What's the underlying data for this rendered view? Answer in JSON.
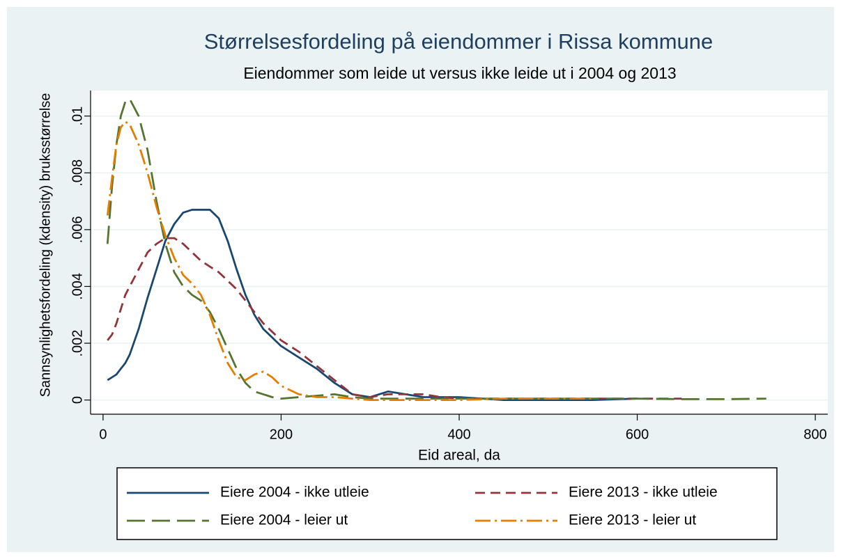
{
  "chart_data": {
    "type": "line",
    "title": "Størrelsesfordeling på eiendommer i Rissa kommune",
    "subtitle": "Eiendommer som leide ut versus ikke leide ut i 2004 og 2013",
    "x_label": "Eid areal, da",
    "y_label": "Sannsynlighetsfordeling (kdensity) bruksstørrelse",
    "x": [
      5,
      10,
      15,
      20,
      25,
      30,
      40,
      50,
      60,
      70,
      80,
      90,
      100,
      110,
      120,
      130,
      140,
      150,
      160,
      170,
      180,
      190,
      200,
      220,
      240,
      260,
      280,
      300,
      320,
      340,
      360,
      380,
      400,
      450,
      500,
      550,
      600,
      650,
      700,
      745
    ],
    "series": [
      {
        "name": "Eiere 2004 - ikke utleie",
        "color": "#1a476f",
        "dash": "solid",
        "values": [
          0.0007,
          0.0008,
          0.0009,
          0.0011,
          0.0013,
          0.0016,
          0.0025,
          0.0036,
          0.0046,
          0.0056,
          0.0062,
          0.0066,
          0.0067,
          0.0067,
          0.0067,
          0.0064,
          0.0056,
          0.0046,
          0.0037,
          0.003,
          0.0025,
          0.0022,
          0.0019,
          0.0015,
          0.0011,
          0.0006,
          0.0002,
          0.0001,
          0.0003,
          0.0002,
          0.0001,
          0.0001,
          0.0001,
          0,
          0,
          0,
          5e-05,
          null,
          null,
          null
        ]
      },
      {
        "name": "Eiere 2013 - ikke utleie",
        "color": "#90353b",
        "dash": "dash",
        "values": [
          0.0021,
          0.0023,
          0.0027,
          0.0032,
          0.0037,
          0.004,
          0.0046,
          0.0052,
          0.0055,
          0.0057,
          0.0057,
          0.0055,
          0.0052,
          0.0049,
          0.0047,
          0.0045,
          0.0042,
          0.0039,
          0.0035,
          0.0031,
          0.0027,
          0.0024,
          0.0021,
          0.0017,
          0.0012,
          0.0007,
          0.0002,
          0.0001,
          0.0002,
          0.0002,
          0.0002,
          0.0001,
          5e-05,
          5e-05,
          5e-05,
          5e-05,
          5e-05,
          5e-05,
          null,
          null
        ]
      },
      {
        "name": "Eiere 2004 - leier ut",
        "color": "#55752f",
        "dash": "longdash",
        "values": [
          0.0055,
          0.0075,
          0.009,
          0.01,
          0.0105,
          0.0106,
          0.01,
          0.0088,
          0.007,
          0.0055,
          0.0045,
          0.004,
          0.0037,
          0.0035,
          0.0031,
          0.0025,
          0.0018,
          0.0011,
          0.0006,
          0.0003,
          0.0002,
          0.0001,
          5e-05,
          0.0001,
          0.00015,
          0.0002,
          0.0001,
          5e-05,
          5e-05,
          5e-05,
          5e-05,
          5e-05,
          5e-05,
          5e-05,
          5e-05,
          5e-05,
          5e-05,
          3e-05,
          3e-05,
          5e-05
        ]
      },
      {
        "name": "Eiere 2013 - leier ut",
        "color": "#e37e00",
        "dash": "dashdot",
        "values": [
          0.0065,
          0.0078,
          0.009,
          0.0096,
          0.0098,
          0.0097,
          0.009,
          0.008,
          0.0068,
          0.0058,
          0.005,
          0.0044,
          0.0041,
          0.0037,
          0.003,
          0.0021,
          0.0013,
          0.0008,
          0.0007,
          0.0009,
          0.001,
          0.0008,
          0.0005,
          0.0002,
          0.0001,
          0.0001,
          5e-05,
          0,
          0,
          0,
          0,
          0,
          0,
          5e-05,
          5e-05,
          5e-05,
          null,
          null,
          null,
          null
        ]
      }
    ],
    "xlim": [
      -14,
      814
    ],
    "ylim": [
      -0.0005,
      0.0109
    ],
    "xticks": [
      0,
      200,
      400,
      600,
      800
    ],
    "yticks": [
      0,
      {
        "value": 0.002,
        "label": ".002"
      },
      {
        "value": 0.004,
        "label": ".004"
      },
      {
        "value": 0.006,
        "label": ".006"
      },
      {
        "value": 0.008,
        "label": ".008"
      },
      {
        "value": 0.01,
        "label": ".01"
      }
    ],
    "grid": true,
    "legend": "bottom"
  }
}
